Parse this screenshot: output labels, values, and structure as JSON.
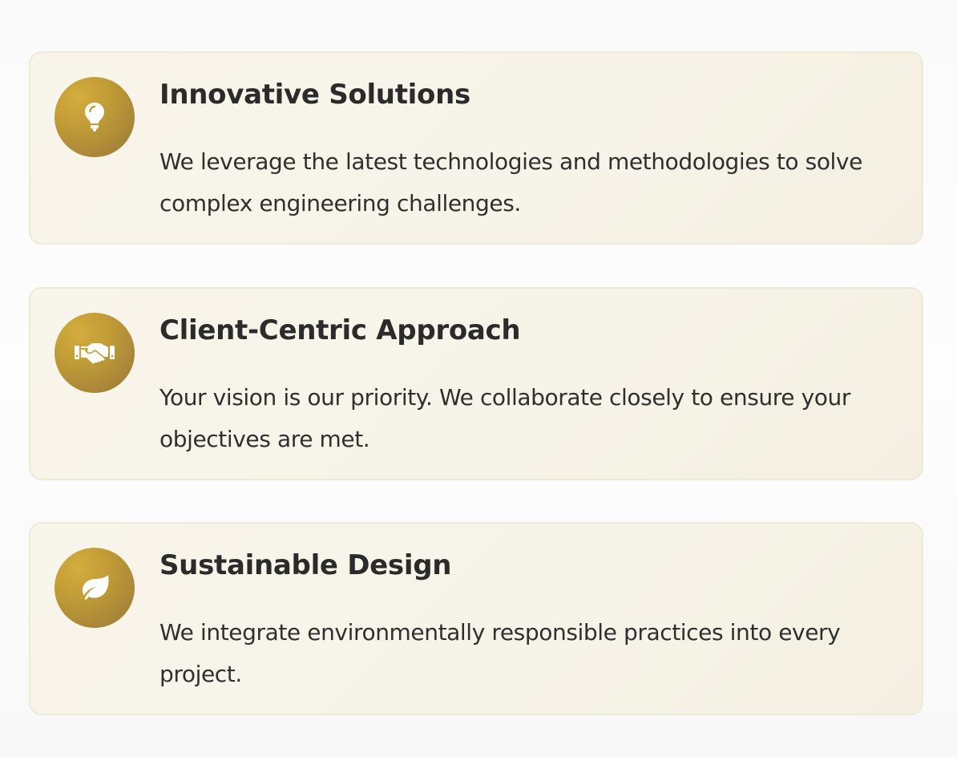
{
  "features": [
    {
      "icon": "lightbulb-icon",
      "title": "Innovative Solutions",
      "description": "We leverage the latest technologies and methodologies to solve complex engineering challenges."
    },
    {
      "icon": "handshake-icon",
      "title": "Client-Centric Approach",
      "description": "Your vision is our priority. We collaborate closely to ensure your objectives are met."
    },
    {
      "icon": "leaf-icon",
      "title": "Sustainable Design",
      "description": "We integrate environmentally responsible practices into every project."
    }
  ],
  "colors": {
    "accent_gold": "#c09a36",
    "card_background": "#f7f4e9",
    "card_border": "#efe9d8",
    "text": "#2b2b2b"
  }
}
